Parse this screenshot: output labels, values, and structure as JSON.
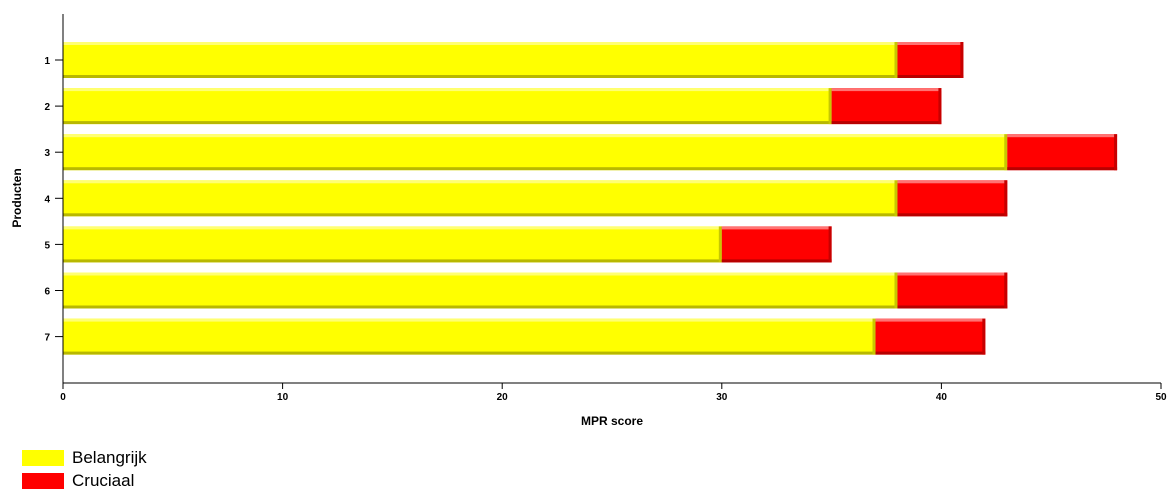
{
  "chart_data": {
    "type": "bar",
    "orientation": "horizontal",
    "stacked": true,
    "categories": [
      "1",
      "2",
      "3",
      "4",
      "5",
      "6",
      "7"
    ],
    "series": [
      {
        "name": "Belangrijk",
        "color": "#ffff00",
        "values": [
          38,
          35,
          43,
          38,
          30,
          38,
          37
        ]
      },
      {
        "name": "Cruciaal",
        "color": "#ff0000",
        "values": [
          3,
          5,
          5,
          5,
          5,
          5,
          5
        ]
      }
    ],
    "xlabel": "MPR score",
    "ylabel": "Producten",
    "xlim": [
      0,
      50
    ],
    "xticks": [
      0,
      10,
      20,
      30,
      40,
      50
    ],
    "grid": false,
    "legend_position": "bottom-left"
  }
}
